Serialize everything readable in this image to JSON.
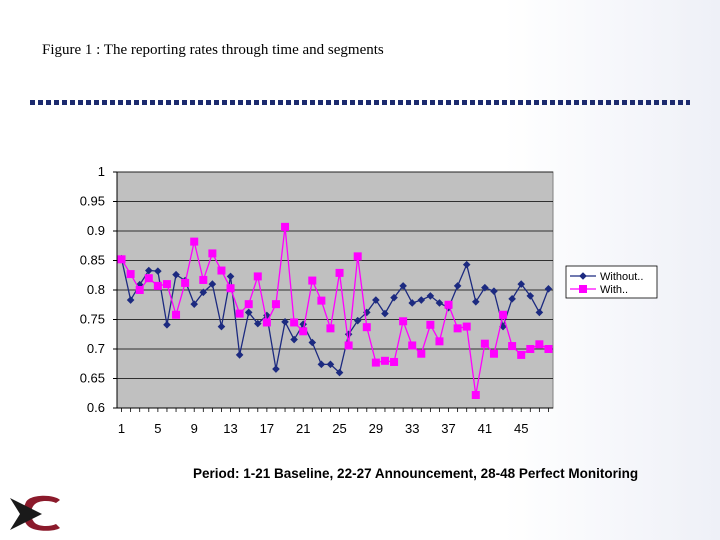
{
  "slide": {
    "title": "Figure 1 : The reporting rates through time and segments",
    "caption": "Period: 1-21 Baseline, 22-27 Announcement, 28-48 Perfect Monitoring"
  },
  "colors": {
    "plot_background": "#c0c0c0",
    "without_series": "#1c2a80",
    "with_series": "#ff00ff",
    "divider": "#1c2a6e",
    "logo": "#8b1a2b"
  },
  "chart_data": {
    "type": "line",
    "x": [
      1,
      2,
      3,
      4,
      5,
      6,
      7,
      8,
      9,
      10,
      11,
      12,
      13,
      14,
      15,
      16,
      17,
      18,
      19,
      20,
      21,
      22,
      23,
      24,
      25,
      26,
      27,
      28,
      29,
      30,
      31,
      32,
      33,
      34,
      35,
      36,
      37,
      38,
      39,
      40,
      41,
      42,
      43,
      44,
      45,
      46,
      47,
      48
    ],
    "x_tick_labels": [
      "1",
      "5",
      "9",
      "13",
      "17",
      "21",
      "25",
      "29",
      "33",
      "37",
      "41",
      "45"
    ],
    "x_tick_values": [
      1,
      5,
      9,
      13,
      17,
      21,
      25,
      29,
      33,
      37,
      41,
      45
    ],
    "ylim": [
      0.6,
      1
    ],
    "y_tick_labels": [
      "0.6",
      "0.65",
      "0.7",
      "0.75",
      "0.8",
      "0.85",
      "0.9",
      "0.95",
      "1"
    ],
    "y_tick_values": [
      0.6,
      0.65,
      0.7,
      0.75,
      0.8,
      0.85,
      0.9,
      0.95,
      1
    ],
    "grid": "horizontal",
    "legend_position": "right",
    "series": [
      {
        "name": "Without..",
        "marker": "diamond",
        "values": [
          0.853,
          0.783,
          0.809,
          0.833,
          0.832,
          0.741,
          0.826,
          0.816,
          0.776,
          0.796,
          0.81,
          0.738,
          0.823,
          0.69,
          0.762,
          0.743,
          0.757,
          0.666,
          0.746,
          0.716,
          0.742,
          0.711,
          0.674,
          0.674,
          0.66,
          0.725,
          0.748,
          0.762,
          0.783,
          0.76,
          0.787,
          0.807,
          0.778,
          0.783,
          0.79,
          0.778,
          0.77,
          0.807,
          0.843,
          0.78,
          0.804,
          0.798,
          0.738,
          0.785,
          0.81,
          0.79,
          0.762,
          0.802
        ]
      },
      {
        "name": "With..",
        "marker": "square",
        "values": [
          0.852,
          0.827,
          0.8,
          0.82,
          0.807,
          0.81,
          0.758,
          0.812,
          0.882,
          0.817,
          0.862,
          0.833,
          0.803,
          0.76,
          0.776,
          0.823,
          0.745,
          0.776,
          0.907,
          0.745,
          0.73,
          0.816,
          0.782,
          0.735,
          0.829,
          0.706,
          0.857,
          0.737,
          0.677,
          0.68,
          0.678,
          0.747,
          0.706,
          0.692,
          0.741,
          0.713,
          0.775,
          0.735,
          0.738,
          0.622,
          0.709,
          0.692,
          0.758,
          0.705,
          0.69,
          0.7,
          0.708,
          0.7
        ]
      }
    ]
  }
}
